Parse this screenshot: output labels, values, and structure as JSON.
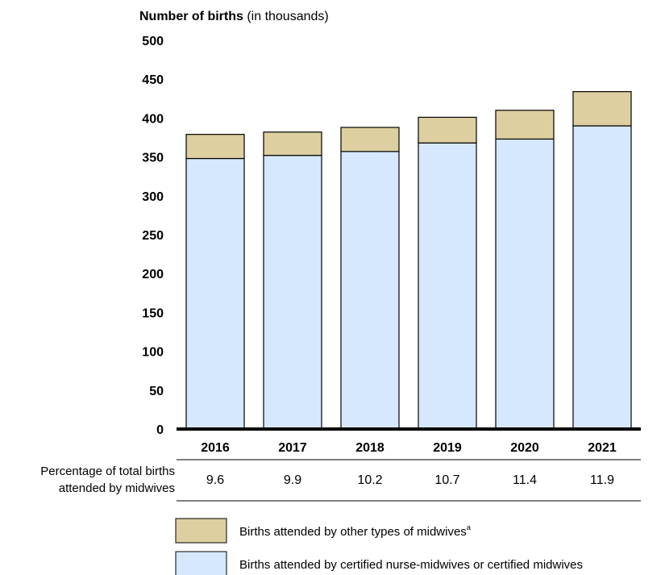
{
  "chart_data": {
    "type": "bar",
    "stacked": true,
    "title": "",
    "ylabel": {
      "main": "Number of births",
      "unit": " (in thousands)"
    },
    "ylim": [
      0,
      500
    ],
    "yticks": [
      "0",
      "50",
      "100",
      "150",
      "200",
      "250",
      "300",
      "350",
      "400",
      "450",
      "500"
    ],
    "categories": [
      "2016",
      "2017",
      "2018",
      "2019",
      "2020",
      "2021"
    ],
    "series": [
      {
        "name": "Births attended by certified nurse-midwives or certified midwives",
        "color": "#d6e8fe",
        "values": [
          348,
          352,
          357,
          368,
          373,
          390
        ]
      },
      {
        "name": "Births attended by other types of midwives",
        "name_suffix": "a",
        "color": "#ddcfa0",
        "values": [
          31,
          30,
          31,
          33,
          37,
          44
        ]
      }
    ],
    "grid": false,
    "legend_position": "bottom",
    "percentage_row": {
      "label_line1": "Percentage of total births",
      "label_line2": "attended by midwives",
      "values": [
        "9.6",
        "9.9",
        "10.2",
        "10.7",
        "11.4",
        "11.9"
      ]
    }
  }
}
